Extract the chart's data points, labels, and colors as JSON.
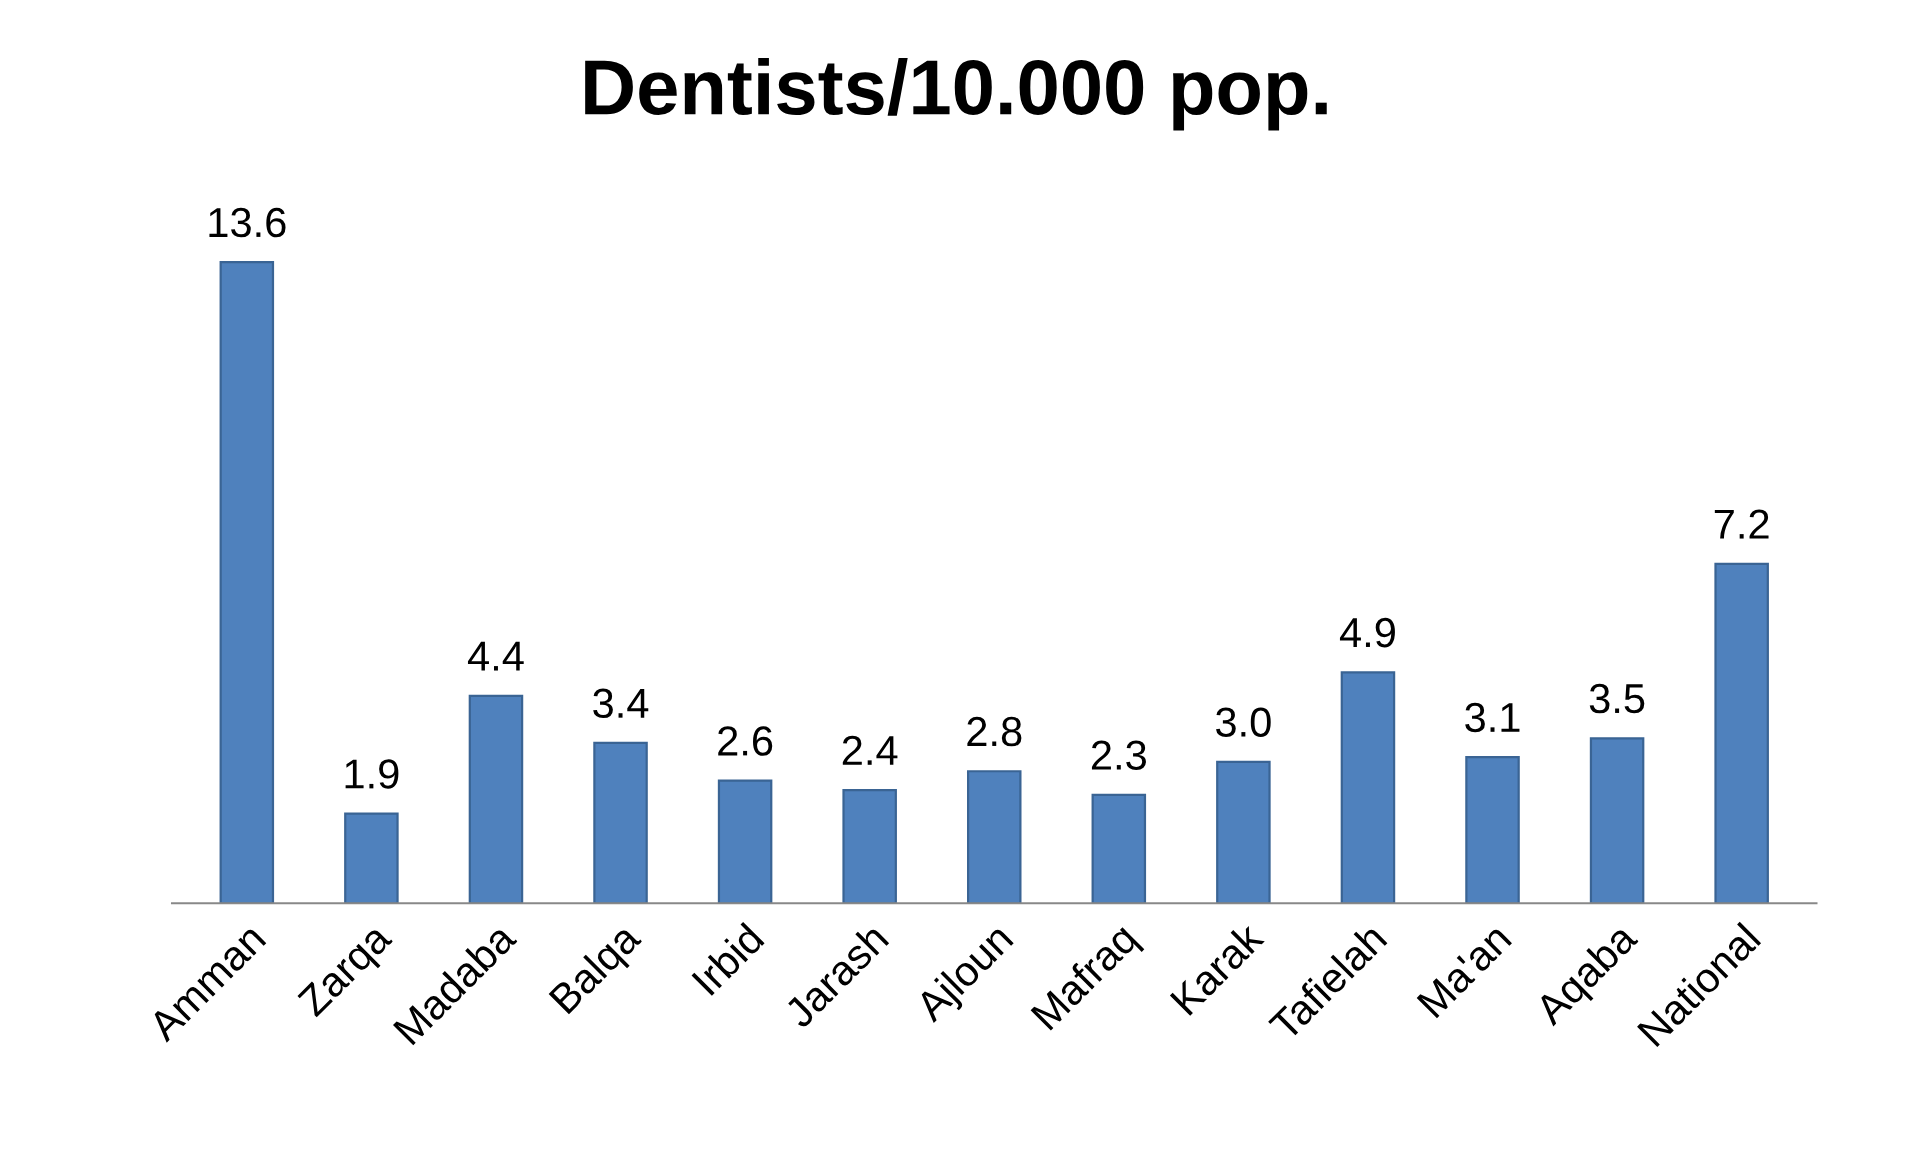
{
  "chart_data": {
    "type": "bar",
    "title": "Dentists/10.000 pop.",
    "categories": [
      "Amman",
      "Zarqa",
      "Madaba",
      "Balqa",
      "Irbid",
      "Jarash",
      "Ajloun",
      "Mafraq",
      "Karak",
      "Tafielah",
      "Ma'an",
      "Aqaba",
      "National"
    ],
    "values": [
      13.6,
      1.9,
      4.4,
      3.4,
      2.6,
      2.4,
      2.8,
      2.3,
      3.0,
      4.9,
      3.1,
      3.5,
      7.2
    ],
    "value_labels": [
      "13.6",
      "1.9",
      "4.4",
      "3.4",
      "2.6",
      "2.4",
      "2.8",
      "2.3",
      "3.0",
      "4.9",
      "3.1",
      "3.5",
      "7.2"
    ],
    "color": "#4f81bd",
    "grid": false,
    "legend": false
  }
}
